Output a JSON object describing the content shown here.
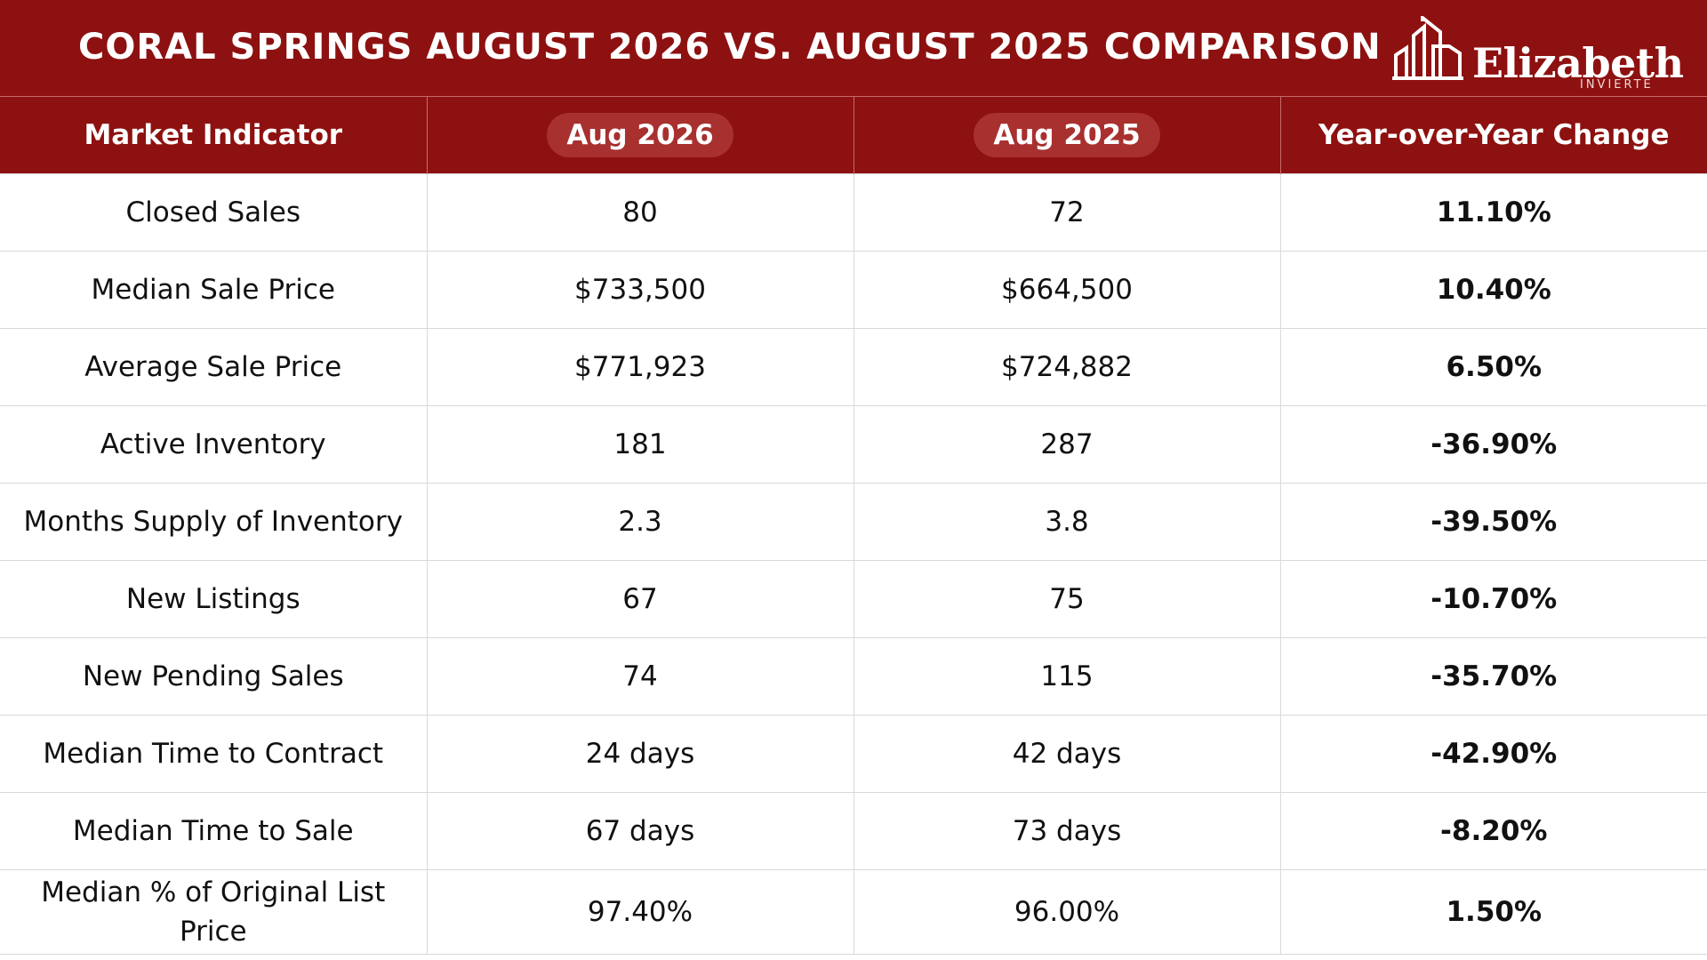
{
  "header": {
    "title": "CORAL SPRINGS AUGUST 2026 VS. AUGUST 2025 COMPARISON",
    "logo_name": "Elizabeth",
    "logo_subtitle": "INVIERTE"
  },
  "colors": {
    "header_red": "#8d1110",
    "pill_red": "#a8302f",
    "text": "#111111",
    "grid_line": "#d9d9d9"
  },
  "chart_data": {
    "type": "table",
    "columns": [
      "Market Indicator",
      "Aug 2026",
      "Aug 2025",
      "Year-over-Year Change"
    ],
    "rows": [
      [
        "Closed Sales",
        "80",
        "72",
        "11.10%"
      ],
      [
        "Median Sale Price",
        "$733,500",
        "$664,500",
        "10.40%"
      ],
      [
        "Average Sale Price",
        "$771,923",
        "$724,882",
        "6.50%"
      ],
      [
        "Active Inventory",
        "181",
        "287",
        "-36.90%"
      ],
      [
        "Months Supply of Inventory",
        "2.3",
        "3.8",
        "-39.50%"
      ],
      [
        "New Listings",
        "67",
        "75",
        "-10.70%"
      ],
      [
        "New Pending Sales",
        "74",
        "115",
        "-35.70%"
      ],
      [
        "Median Time to Contract",
        "24 days",
        "42 days",
        "-42.90%"
      ],
      [
        "Median Time to Sale",
        "67 days",
        "73 days",
        "-8.20%"
      ],
      [
        "Median % of Original List Price",
        "97.40%",
        "96.00%",
        "1.50%"
      ]
    ]
  }
}
